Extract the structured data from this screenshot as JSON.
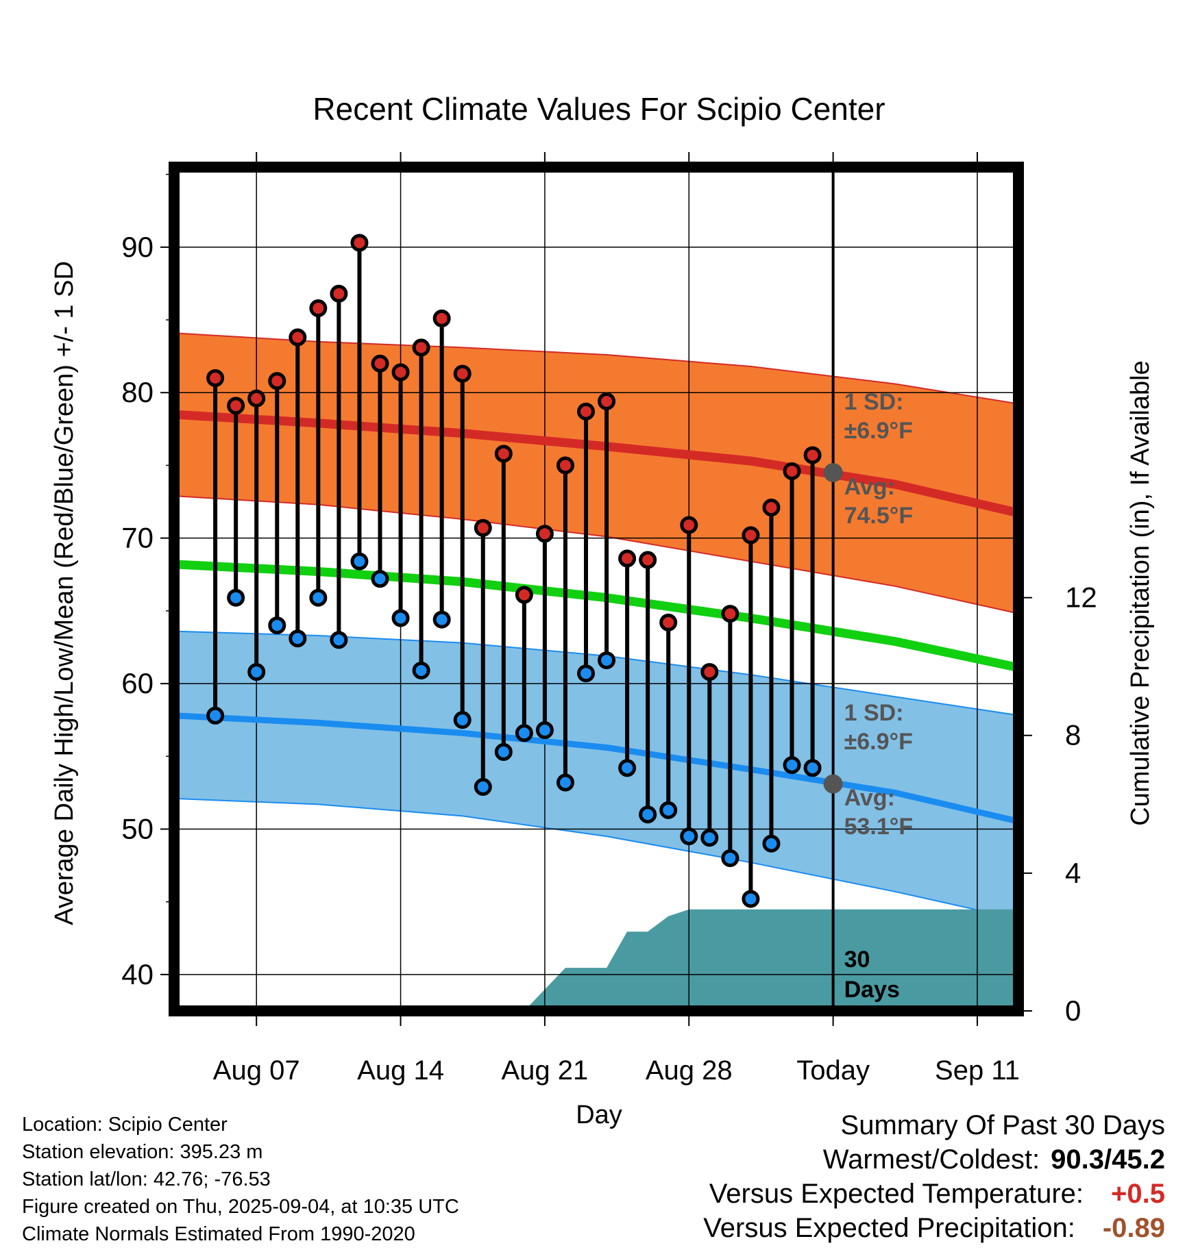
{
  "chart_data": {
    "type": "line",
    "title": "Recent Climate Values For Scipio Center",
    "xlabel": "Day",
    "ylabel": "Average Daily High/Low/Mean (Red/Blue/Green) +/- 1 SD",
    "y2label": "Cumulative Precipitation (in), If Available",
    "ylim": [
      37.5,
      95.5
    ],
    "y_ticks": [
      40,
      50,
      60,
      70,
      80,
      90
    ],
    "y2lim": [
      0,
      24.5
    ],
    "y2_ticks": [
      0,
      4,
      8,
      12
    ],
    "x_range": [
      "2025-08-03",
      "2025-09-14"
    ],
    "x_ticks": [
      {
        "date": "2025-08-07",
        "label": "Aug 07"
      },
      {
        "date": "2025-08-14",
        "label": "Aug 14"
      },
      {
        "date": "2025-08-21",
        "label": "Aug 21"
      },
      {
        "date": "2025-08-28",
        "label": "Aug 28"
      },
      {
        "date": "2025-09-04",
        "label": "Today"
      },
      {
        "date": "2025-09-11",
        "label": "Sep 11"
      }
    ],
    "grid": true,
    "today": "2025-09-04",
    "daily": {
      "dates": [
        "2025-08-05",
        "2025-08-06",
        "2025-08-07",
        "2025-08-08",
        "2025-08-09",
        "2025-08-10",
        "2025-08-11",
        "2025-08-12",
        "2025-08-13",
        "2025-08-14",
        "2025-08-15",
        "2025-08-16",
        "2025-08-17",
        "2025-08-18",
        "2025-08-19",
        "2025-08-20",
        "2025-08-21",
        "2025-08-22",
        "2025-08-23",
        "2025-08-24",
        "2025-08-25",
        "2025-08-26",
        "2025-08-27",
        "2025-08-28",
        "2025-08-29",
        "2025-08-30",
        "2025-08-31",
        "2025-09-01",
        "2025-09-02",
        "2025-09-03"
      ],
      "highs": [
        81.0,
        79.1,
        79.6,
        80.8,
        83.8,
        85.8,
        86.8,
        90.3,
        82.0,
        81.4,
        83.1,
        85.1,
        81.3,
        70.7,
        75.8,
        66.1,
        70.3,
        75.0,
        78.7,
        79.4,
        68.6,
        68.5,
        64.2,
        70.9,
        60.8,
        64.8,
        70.2,
        72.1,
        74.6,
        75.7
      ],
      "lows": [
        57.8,
        65.9,
        60.8,
        64.0,
        63.1,
        65.9,
        63.0,
        68.4,
        67.2,
        64.5,
        60.9,
        64.4,
        57.5,
        52.9,
        55.3,
        56.6,
        56.8,
        53.2,
        60.7,
        61.6,
        54.2,
        51.0,
        51.3,
        49.5,
        49.4,
        48.0,
        45.2,
        49.0,
        54.4,
        54.2
      ]
    },
    "normals": {
      "dates": [
        "2025-08-03",
        "2025-08-10",
        "2025-08-17",
        "2025-08-24",
        "2025-08-31",
        "2025-09-07",
        "2025-09-14"
      ],
      "high_mean": [
        78.5,
        77.9,
        77.2,
        76.3,
        75.3,
        73.7,
        71.4
      ],
      "high_upper": [
        84.1,
        83.5,
        83.1,
        82.6,
        81.8,
        80.6,
        79.0
      ],
      "high_lower": [
        72.9,
        72.3,
        71.3,
        70.1,
        68.4,
        66.7,
        64.5
      ],
      "mean": [
        68.2,
        67.7,
        67.0,
        65.9,
        64.5,
        62.9,
        60.8
      ],
      "low_mean": [
        57.8,
        57.3,
        56.6,
        55.6,
        54.1,
        52.5,
        50.2
      ],
      "low_upper": [
        63.6,
        63.3,
        62.8,
        61.9,
        60.6,
        59.1,
        57.6
      ],
      "low_lower": [
        52.1,
        51.7,
        50.9,
        49.5,
        47.7,
        45.7,
        43.5
      ]
    },
    "precip": {
      "dates": [
        "2025-08-03",
        "2025-08-15",
        "2025-08-18",
        "2025-08-19",
        "2025-08-20",
        "2025-08-22",
        "2025-08-23",
        "2025-08-24",
        "2025-08-25",
        "2025-08-26",
        "2025-08-27",
        "2025-08-28",
        "2025-09-14"
      ],
      "values": [
        0,
        0,
        0,
        0,
        0,
        1.25,
        1.25,
        1.25,
        2.3,
        2.3,
        2.75,
        2.95,
        2.95
      ]
    },
    "annotations": {
      "high_sd": "1 SD:",
      "high_sd_value": "±6.9°F",
      "high_avg": "Avg:",
      "high_avg_value": "74.5°F",
      "low_sd": "1 SD:",
      "low_sd_value": "±6.9°F",
      "low_avg": "Avg:",
      "low_avg_value": "53.1°F",
      "days_line1": "30",
      "days_line2": "Days"
    },
    "today_high_avg": 74.5,
    "today_low_avg": 53.1,
    "colors": {
      "high_band": "#f47a30",
      "high_line": "#d42a26",
      "mean_line": "#10d010",
      "low_band": "#82c0e6",
      "low_line": "#1a8cf0",
      "precip": "#4a9aa2",
      "high_marker": "#d42a26",
      "low_marker": "#1a8cf0",
      "avg_marker": "#555555",
      "annotation_text": "#555555"
    }
  },
  "footer": {
    "location": "Location: Scipio Center",
    "elevation": "Station elevation: 395.23 m",
    "latlon": "Station lat/lon: 42.76; -76.53",
    "created": "Figure created on Thu, 2025-09-04, at 10:35 UTC",
    "normals": "Climate Normals Estimated From 1990-2020"
  },
  "summary": {
    "title": "Summary Of Past 30 Days",
    "warmest_label": "Warmest/Coldest:",
    "warmest_value": "90.3/45.2",
    "temp_label": "Versus Expected Temperature:",
    "temp_value": "+0.5",
    "temp_color": "#d42a26",
    "precip_label": "Versus Expected Precipitation:",
    "precip_value": "-0.89",
    "precip_color": "#a0522d"
  }
}
